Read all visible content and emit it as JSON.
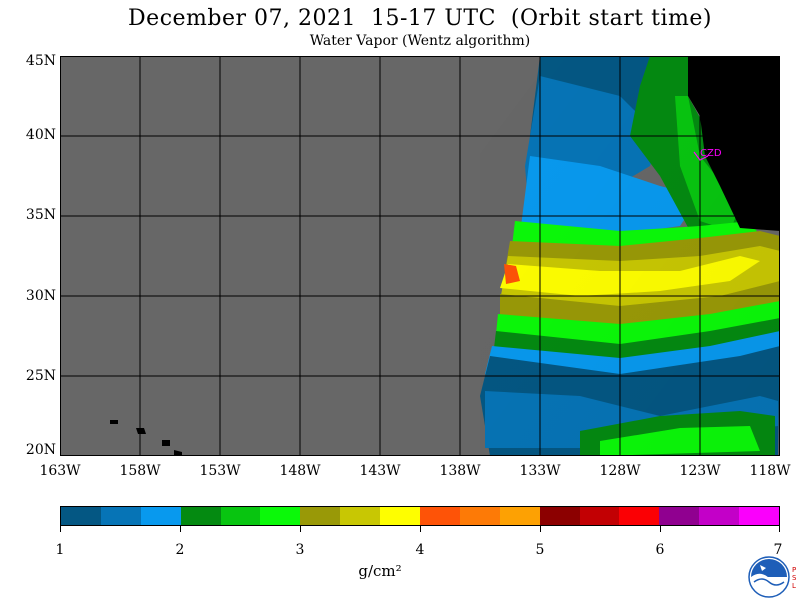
{
  "title": "December 07, 2021  15-17 UTC  (Orbit start time)",
  "subtitle": "Water Vapor (Wentz algorithm)",
  "map": {
    "lat_labels": [
      "45N",
      "40N",
      "35N",
      "30N",
      "25N",
      "20N"
    ],
    "lon_labels": [
      "163W",
      "158W",
      "153W",
      "148W",
      "143W",
      "138W",
      "133W",
      "128W",
      "123W",
      "118W"
    ],
    "lat_range": [
      20,
      45
    ],
    "lon_range": [
      -163,
      -118
    ],
    "station_label": "CZD",
    "no_data_color": "#676767",
    "land_color": "#000000",
    "station_color": "#ff00ff"
  },
  "colorbar": {
    "colors": [
      "#045783",
      "#0674b6",
      "#0899ee",
      "#048a11",
      "#08c510",
      "#0bf909",
      "#999907",
      "#c8c703",
      "#fefe00",
      "#fe5307",
      "#fd7a06",
      "#fda103",
      "#8c0000",
      "#c20003",
      "#fb0004",
      "#900090",
      "#c300c8",
      "#fa00fc"
    ],
    "tick_labels": [
      "1",
      "2",
      "3",
      "4",
      "5",
      "6",
      "7"
    ],
    "units": "g/cm²"
  },
  "logo": {
    "name": "NOAA",
    "lab": "PSL",
    "brand_color": "#1e5eb8"
  }
}
